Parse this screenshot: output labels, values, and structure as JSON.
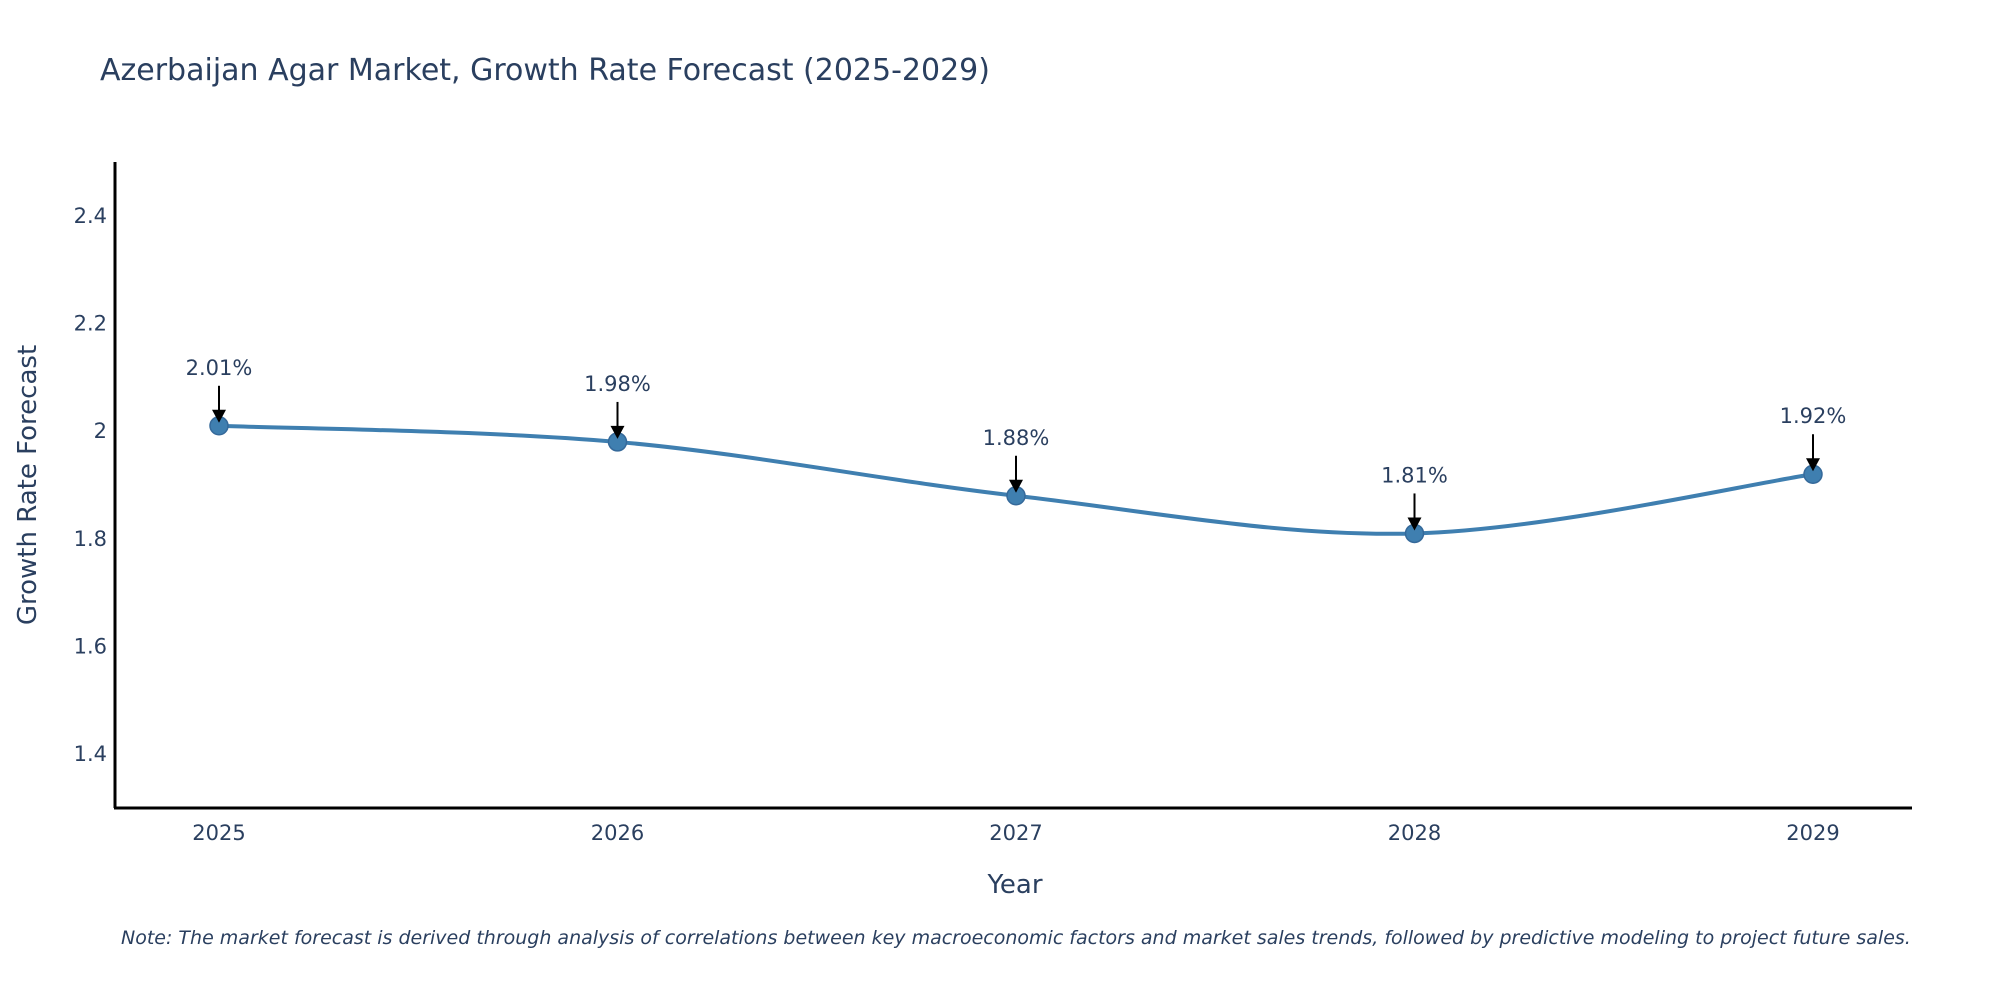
{
  "chart_data": {
    "type": "line",
    "title": "Azerbaijan Agar Market, Growth Rate Forecast (2025-2029)",
    "xlabel": "Year",
    "ylabel": "Growth Rate Forecast",
    "categories": [
      "2025",
      "2026",
      "2027",
      "2028",
      "2029"
    ],
    "series": [
      {
        "name": "Growth Rate Forecast",
        "values": [
          2.01,
          1.98,
          1.88,
          1.81,
          1.92
        ],
        "labels": [
          "2.01%",
          "1.98%",
          "1.88%",
          "1.81%",
          "1.92%"
        ],
        "color": "#3f7fb0",
        "line_shape": "spline"
      }
    ],
    "ylim": [
      1.3,
      2.5
    ],
    "yticks": [
      1.4,
      1.6,
      1.8,
      2,
      2.2,
      2.4
    ],
    "ytick_labels": [
      "1.4",
      "1.6",
      "1.8",
      "2",
      "2.2",
      "2.4"
    ],
    "grid": false,
    "legend": "none",
    "annotation_style": "arrow-down",
    "note": "Note: The market forecast is derived through analysis of correlations between key macroeconomic factors and market sales trends, followed by predictive modeling to project future sales."
  },
  "colors": {
    "text": "#2a3f5f",
    "axis": "#000000",
    "line": "#3f7fb0"
  }
}
